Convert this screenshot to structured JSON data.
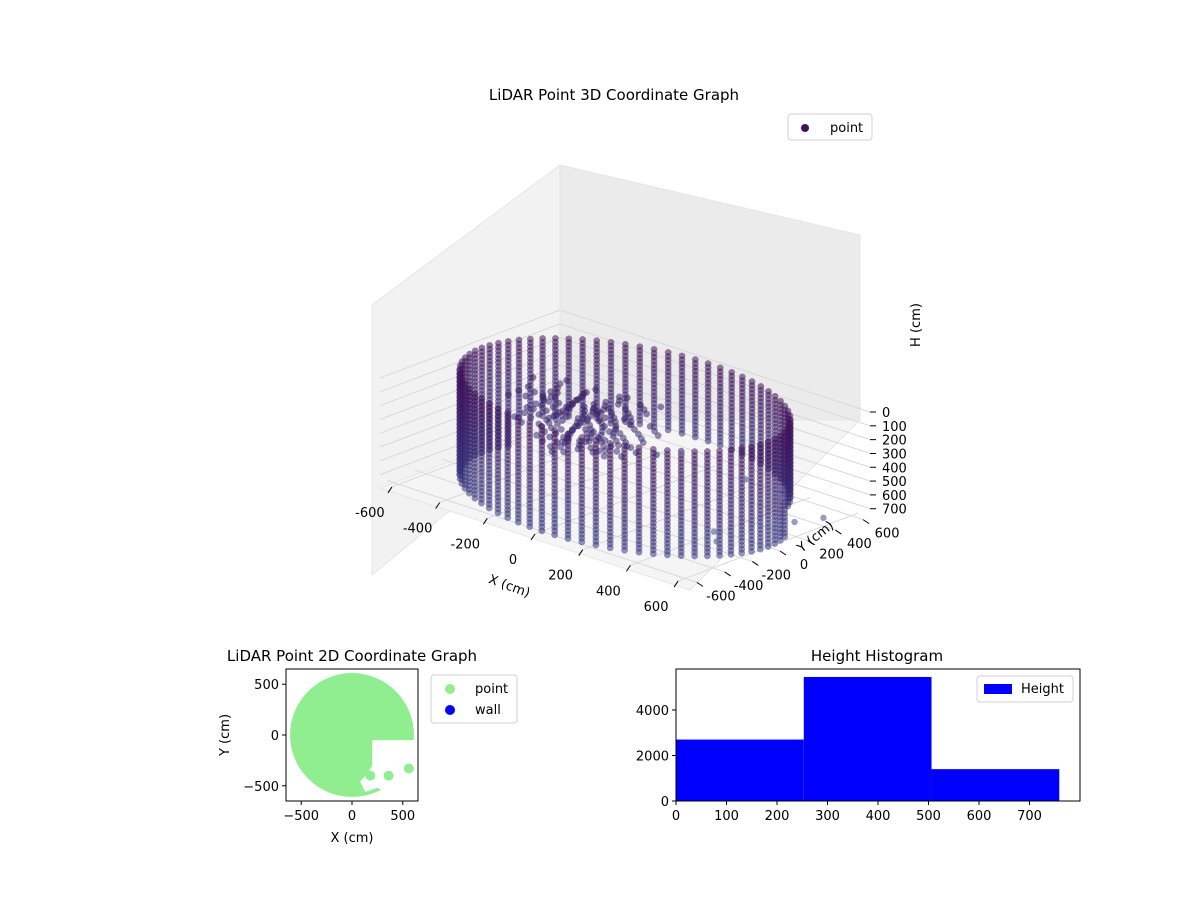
{
  "chart_data": [
    {
      "type": "scatter3d",
      "title": "LiDAR Point 3D Coordinate Graph",
      "xlabel": "X (cm)",
      "ylabel": "Y (cm)",
      "zlabel": "H (cm)",
      "xlim": [
        -650,
        650
      ],
      "ylim": [
        -650,
        650
      ],
      "zlim": [
        0,
        760
      ],
      "z_inverted": true,
      "xticks": [
        -600,
        -400,
        -200,
        0,
        200,
        400,
        600
      ],
      "yticks": [
        -600,
        -400,
        -200,
        0,
        200,
        400,
        600
      ],
      "zticks": [
        0,
        100,
        200,
        300,
        400,
        500,
        600,
        700
      ],
      "legend": {
        "placement": "top-right",
        "entries": [
          {
            "label": "point",
            "color": "#44135f"
          }
        ]
      },
      "series": [
        {
          "name": "point",
          "description_values": {
            "wall_radius": 600,
            "wall_height_range": [
              0,
              760
            ],
            "floor_ring_height": 760
          },
          "outliers": [
            [
              180,
              560,
              720
            ],
            [
              350,
              520,
              740
            ],
            [
              420,
              -80,
              720
            ],
            [
              500,
              -200,
              700
            ],
            [
              560,
              260,
              700
            ],
            [
              -100,
              580,
              700
            ],
            [
              300,
              600,
              730
            ],
            [
              600,
              400,
              700
            ]
          ]
        }
      ],
      "grid": true
    },
    {
      "type": "scatter",
      "title": "LiDAR Point 2D Coordinate Graph",
      "xlabel": "X (cm)",
      "ylabel": "Y (cm)",
      "xlim": [
        -650,
        650
      ],
      "ylim": [
        -650,
        650
      ],
      "xticks": [
        -500,
        0,
        500
      ],
      "yticks": [
        -500,
        0,
        500
      ],
      "legend": {
        "placement": "outside-right",
        "entries": [
          {
            "label": "point",
            "color": "#90ee90"
          },
          {
            "label": "wall",
            "color": "#0000ff"
          }
        ]
      },
      "series": [
        {
          "name": "point",
          "color": "#90ee90",
          "shape": "filled disc",
          "radius": 610
        },
        {
          "name": "wall",
          "color": "#0000ff",
          "points": []
        }
      ],
      "holes": [
        {
          "polygon": [
            [
              200,
              -50
            ],
            [
              650,
              -50
            ],
            [
              650,
              -420
            ],
            [
              520,
              -420
            ],
            [
              430,
              -530
            ],
            [
              320,
              -560
            ],
            [
              250,
              -520
            ],
            [
              130,
              -560
            ],
            [
              80,
              -460
            ],
            [
              150,
              -380
            ],
            [
              200,
              -300
            ]
          ]
        }
      ],
      "extra_dots": [
        [
          180,
          -400
        ],
        [
          360,
          -400
        ],
        [
          560,
          -330
        ]
      ]
    },
    {
      "type": "bar",
      "title": "Height Histogram",
      "xlim": [
        0,
        800
      ],
      "ylim": [
        0,
        5800
      ],
      "xticks": [
        0,
        100,
        200,
        300,
        400,
        500,
        600,
        700
      ],
      "yticks": [
        0,
        2000,
        4000
      ],
      "legend": {
        "placement": "top-right",
        "entries": [
          {
            "label": "Height",
            "color": "#0000ff"
          }
        ]
      },
      "bins": [
        {
          "from": 0,
          "to": 253,
          "value": 2700
        },
        {
          "from": 253,
          "to": 506,
          "value": 5450
        },
        {
          "from": 506,
          "to": 759,
          "value": 1400
        }
      ],
      "color": "#0000ff"
    }
  ]
}
